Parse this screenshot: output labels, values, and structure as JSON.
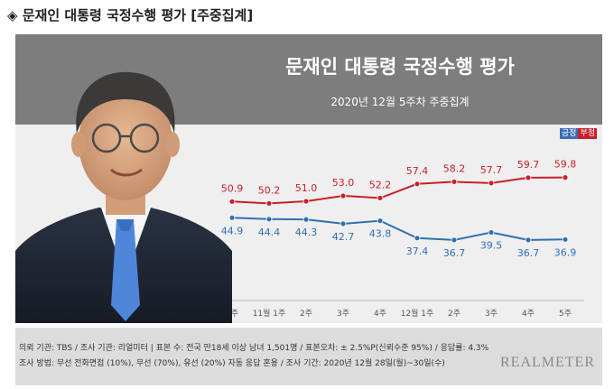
{
  "header": {
    "diamond_icon": "diamond-icon",
    "title": "문재인 대통령 국정수행 평가 [주중집계]"
  },
  "chart_data": {
    "type": "line",
    "title": "문재인 대통령 국정수행 평가",
    "subtitle": "2020년 12월 5주차 주중집계",
    "categories": [
      "4주",
      "11월 1주",
      "2주",
      "3주",
      "4주",
      "12월 1주",
      "2주",
      "3주",
      "4주",
      "5주"
    ],
    "series": [
      {
        "name": "긍정",
        "color": "#2f6fb4",
        "values": [
          44.9,
          44.4,
          44.3,
          42.7,
          43.8,
          37.4,
          36.7,
          39.5,
          36.7,
          36.9
        ]
      },
      {
        "name": "부정",
        "color": "#c8202a",
        "values": [
          50.9,
          50.2,
          51.0,
          53.0,
          52.2,
          57.4,
          58.2,
          57.7,
          59.7,
          59.8
        ]
      }
    ],
    "legend_position": "top-right",
    "grid": false
  },
  "footer": {
    "line1": "의뢰 기관: TBS / 조사 기관: 리얼미터 | 표본 수: 전국 만18세 이상 남녀 1,501명 / 표본오차: ± 2.5%P(신뢰수준 95%) / 응답률: 4.3%",
    "line2": "조사 방법: 무선 전화면접 (10%), 무선 (70%), 유선 (20%)  자동 응답 혼용 / 조사 기간: 2020년 12월 28일(월)~30일(수)",
    "brand": "REALMETER"
  }
}
